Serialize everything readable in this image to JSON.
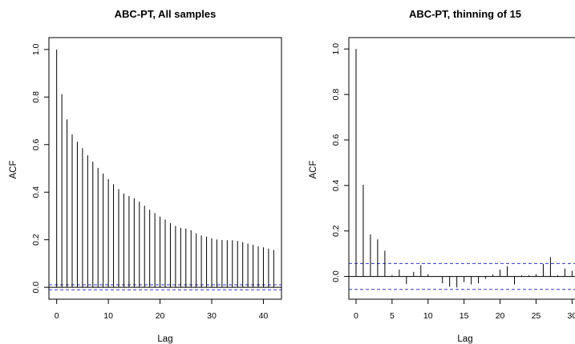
{
  "chart_data": [
    {
      "type": "bar",
      "title": "ABC-PT, All samples",
      "xlabel": "Lag",
      "ylabel": "ACF",
      "xlim": [
        -1.5,
        43.5
      ],
      "ylim": [
        -0.05,
        1.05
      ],
      "xticks": [
        "0",
        "10",
        "20",
        "30",
        "40"
      ],
      "yticks": [
        "0.0",
        "0.2",
        "0.4",
        "0.6",
        "0.8",
        "1.0"
      ],
      "ci": 0.0105,
      "ci_color": "#3333cc",
      "x": [
        0,
        1,
        2,
        3,
        4,
        5,
        6,
        7,
        8,
        9,
        10,
        11,
        12,
        13,
        14,
        15,
        16,
        17,
        18,
        19,
        20,
        21,
        22,
        23,
        24,
        25,
        26,
        27,
        28,
        29,
        30,
        31,
        32,
        33,
        34,
        35,
        36,
        37,
        38,
        39,
        40,
        41,
        42
      ],
      "values": [
        1.0,
        0.812,
        0.706,
        0.643,
        0.612,
        0.585,
        0.555,
        0.528,
        0.502,
        0.478,
        0.455,
        0.433,
        0.413,
        0.394,
        0.384,
        0.374,
        0.36,
        0.343,
        0.326,
        0.312,
        0.297,
        0.285,
        0.27,
        0.258,
        0.25,
        0.247,
        0.24,
        0.227,
        0.218,
        0.213,
        0.206,
        0.201,
        0.199,
        0.198,
        0.198,
        0.195,
        0.19,
        0.184,
        0.179,
        0.172,
        0.168,
        0.163,
        0.157
      ]
    },
    {
      "type": "bar",
      "title": "ABC-PT, thinning of 15",
      "xlabel": "Lag",
      "ylabel": "ACF",
      "xlim": [
        -1.0,
        31.3
      ],
      "ylim": [
        -0.1,
        1.05
      ],
      "xticks": [
        "0",
        "5",
        "10",
        "15",
        "20",
        "25",
        "30"
      ],
      "yticks": [
        "0.0",
        "0.2",
        "0.4",
        "0.6",
        "0.8",
        "1.0"
      ],
      "ci": 0.057,
      "ci_color": "#3333cc",
      "x": [
        0,
        1,
        2,
        3,
        4,
        5,
        6,
        7,
        8,
        9,
        10,
        11,
        12,
        13,
        14,
        15,
        16,
        17,
        18,
        19,
        20,
        21,
        22,
        23,
        24,
        25,
        26,
        27,
        28,
        29,
        30
      ],
      "values": [
        1.0,
        0.403,
        0.185,
        0.163,
        0.113,
        0.005,
        0.03,
        -0.033,
        0.02,
        0.05,
        0.01,
        0.0,
        -0.03,
        -0.045,
        -0.048,
        -0.025,
        -0.035,
        -0.03,
        -0.01,
        0.008,
        0.03,
        0.045,
        -0.035,
        0.005,
        0.005,
        0.01,
        0.055,
        0.085,
        0.005,
        0.035,
        0.025
      ]
    }
  ]
}
